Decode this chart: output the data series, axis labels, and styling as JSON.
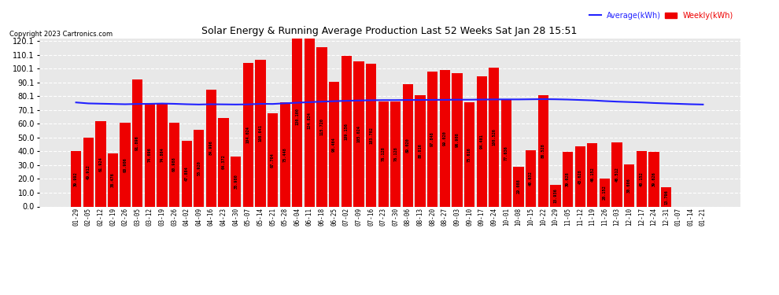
{
  "title": "Solar Energy & Running Average Production Last 52 Weeks Sat Jan 28 15:51",
  "copyright": "Copyright 2023 Cartronics.com",
  "legend_avg": "Average(kWh)",
  "legend_weekly": "Weekly(kWh)",
  "bar_color": "#ee0000",
  "avg_line_color": "#2222ff",
  "background_color": "#ffffff",
  "plot_bg_color": "#e8e8e8",
  "grid_color": "#ffffff",
  "ylim": [
    0,
    122
  ],
  "yticks": [
    0.0,
    10.0,
    20.0,
    30.0,
    40.0,
    50.0,
    60.0,
    70.1,
    80.1,
    90.1,
    100.1,
    110.1,
    120.1
  ],
  "categories": [
    "01-29",
    "02-05",
    "02-12",
    "02-19",
    "02-26",
    "03-05",
    "03-12",
    "03-19",
    "03-26",
    "04-02",
    "04-09",
    "04-16",
    "04-23",
    "04-30",
    "05-07",
    "05-14",
    "05-21",
    "05-28",
    "06-04",
    "06-11",
    "06-18",
    "06-25",
    "07-02",
    "07-09",
    "07-16",
    "07-23",
    "07-30",
    "08-06",
    "08-13",
    "08-20",
    "08-27",
    "09-03",
    "09-10",
    "09-17",
    "09-24",
    "10-01",
    "10-08",
    "10-15",
    "10-22",
    "10-29",
    "11-05",
    "11-12",
    "11-19",
    "11-26",
    "12-03",
    "12-10",
    "12-17",
    "12-24",
    "12-31",
    "01-07",
    "01-14",
    "01-21"
  ],
  "weekly_values": [
    39.992,
    49.912,
    61.924,
    38.476,
    60.906,
    91.896,
    74.696,
    74.864,
    60.988,
    47.884,
    55.92,
    84.996,
    64.372,
    35.98,
    104.024,
    106.641,
    67.704,
    75.448,
    130.1,
    124.824,
    115.72,
    90.464,
    109.156,
    105.024,
    103.702,
    76.128,
    76.128,
    89.02,
    80.816,
    97.848,
    99.02,
    96.908,
    75.616,
    94.401,
    100.526,
    77.636,
    29.088,
    40.632,
    80.528,
    15.936,
    39.628,
    43.628,
    46.152,
    20.152,
    46.512,
    30.606,
    40.152,
    39.626,
    13.796,
    0.0,
    0.0,
    0.0
  ],
  "avg_values": [
    75.5,
    74.8,
    74.6,
    74.4,
    74.2,
    74.4,
    74.5,
    74.7,
    74.5,
    74.2,
    74.0,
    74.2,
    74.1,
    74.0,
    74.1,
    74.5,
    74.4,
    74.9,
    75.3,
    75.7,
    76.1,
    76.4,
    76.7,
    76.9,
    77.1,
    77.2,
    77.2,
    77.3,
    77.3,
    77.4,
    77.4,
    77.5,
    77.5,
    77.6,
    77.7,
    77.7,
    77.7,
    77.8,
    77.9,
    77.8,
    77.6,
    77.3,
    77.0,
    76.5,
    76.1,
    75.8,
    75.5,
    75.1,
    74.8,
    74.5,
    74.2,
    74.0
  ]
}
